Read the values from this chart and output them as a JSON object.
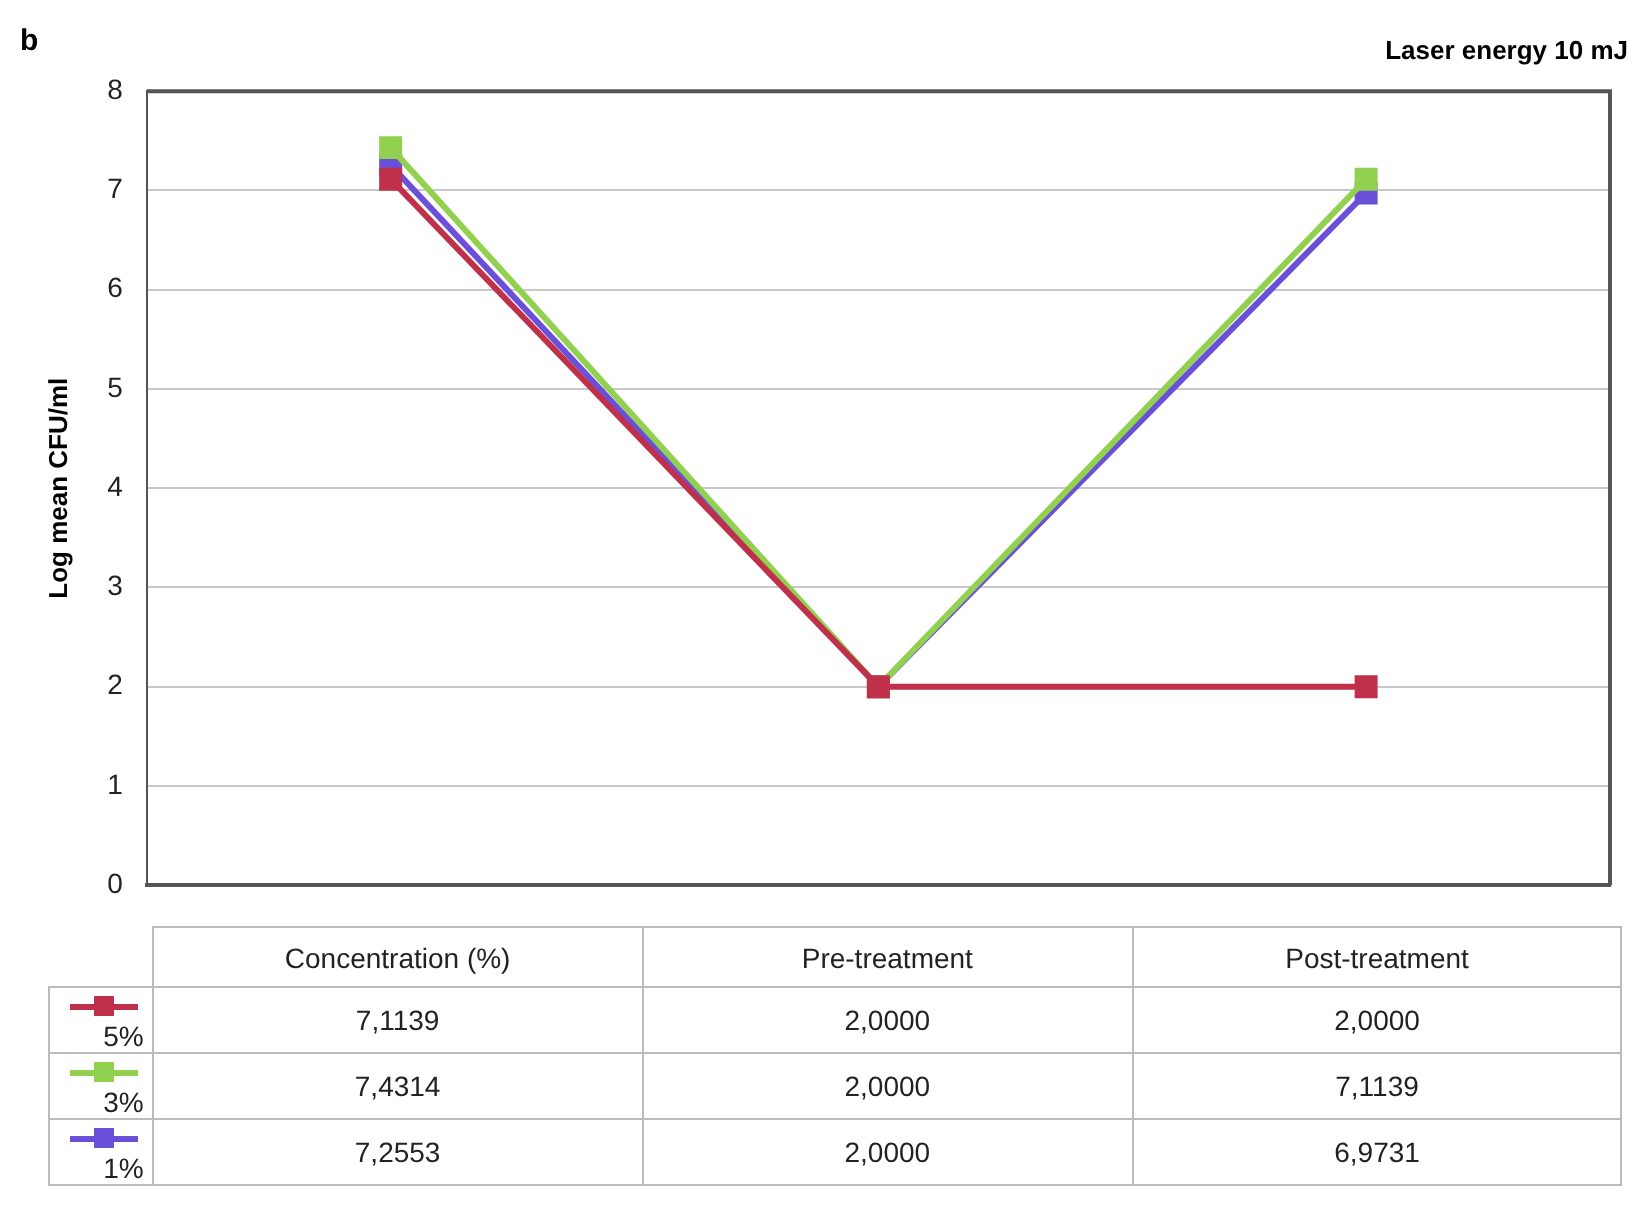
{
  "chart_data": {
    "type": "line",
    "title": "Laser energy 10 mJ",
    "ylabel": "Log mean CFU/ml",
    "annotations": [
      "b"
    ],
    "categories": [
      "Concentration (%)",
      "Pre-treatment",
      "Post-treatment"
    ],
    "series": [
      {
        "name": "5%",
        "color": "#c0304a",
        "values": [
          7.1139,
          2.0,
          2.0
        ],
        "value_labels": [
          "7,1139",
          "2,0000",
          "2,0000"
        ]
      },
      {
        "name": "3%",
        "color": "#92d050",
        "values": [
          7.4314,
          2.0,
          7.1139
        ],
        "value_labels": [
          "7,4314",
          "2,0000",
          "7,1139"
        ]
      },
      {
        "name": "1%",
        "color": "#6a4fd8",
        "values": [
          7.2553,
          2.0,
          6.9731
        ],
        "value_labels": [
          "7,2553",
          "2,0000",
          "6,9731"
        ]
      }
    ],
    "ylim": [
      0,
      8
    ],
    "yticks": [
      0,
      1,
      2,
      3,
      4,
      5,
      6,
      7,
      8
    ],
    "grid": "y",
    "legend": "bottom",
    "marker": "square",
    "line_style": "solid"
  }
}
